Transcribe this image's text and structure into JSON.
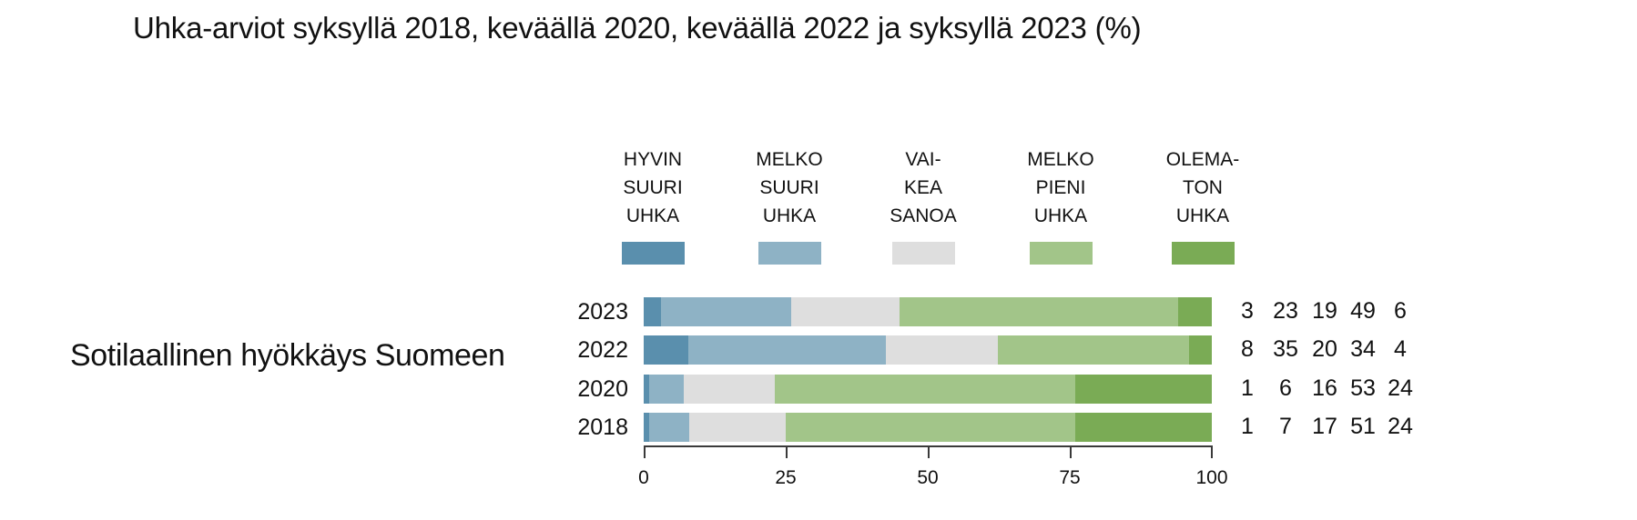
{
  "title": "Uhka-arviot syksyllä 2018, keväällä 2020, keväällä 2022 ja syksyllä 2023 (%)",
  "legend": [
    {
      "lines": [
        "HYVIN",
        "SUURI",
        "UHKA"
      ],
      "color": "#5a8fad"
    },
    {
      "lines": [
        "MELKO",
        "SUURI",
        "UHKA"
      ],
      "color": "#8eb2c5"
    },
    {
      "lines": [
        "VAI-",
        "KEA",
        "SANOA"
      ],
      "color": "#dedede"
    },
    {
      "lines": [
        "MELKO",
        "PIENI",
        "UHKA"
      ],
      "color": "#a2c589"
    },
    {
      "lines": [
        "OLEMA-",
        "TON",
        "UHKA"
      ],
      "color": "#7aab55"
    }
  ],
  "row_label": "Sotilaallinen hyökkäys Suomeen",
  "rows": [
    {
      "year": "2023",
      "values": [
        3,
        23,
        19,
        49,
        6
      ]
    },
    {
      "year": "2022",
      "values": [
        8,
        35,
        20,
        34,
        4
      ]
    },
    {
      "year": "2020",
      "values": [
        1,
        6,
        16,
        53,
        24
      ]
    },
    {
      "year": "2018",
      "values": [
        1,
        7,
        17,
        51,
        24
      ]
    }
  ],
  "axis": {
    "ticks": [
      "0",
      "25",
      "50",
      "75",
      "100"
    ]
  },
  "chart_data": {
    "type": "bar",
    "orientation": "horizontal",
    "stacked": true,
    "title": "Uhka-arviot syksyllä 2018, keväällä 2020, keväällä 2022 ja syksyllä 2023 (%)",
    "group_label": "Sotilaallinen hyökkäys Suomeen",
    "categories": [
      "2023",
      "2022",
      "2020",
      "2018"
    ],
    "series": [
      {
        "name": "HYVIN SUURI UHKA",
        "color": "#5a8fad",
        "values": [
          3,
          8,
          1,
          1
        ]
      },
      {
        "name": "MELKO SUURI UHKA",
        "color": "#8eb2c5",
        "values": [
          23,
          35,
          6,
          7
        ]
      },
      {
        "name": "VAIKEA SANOA",
        "color": "#dedede",
        "values": [
          19,
          20,
          16,
          17
        ]
      },
      {
        "name": "MELKO PIENI UHKA",
        "color": "#a2c589",
        "values": [
          49,
          34,
          53,
          51
        ]
      },
      {
        "name": "OLEMATON UHKA",
        "color": "#7aab55",
        "values": [
          6,
          4,
          24,
          24
        ]
      }
    ],
    "xlabel": "",
    "ylabel": "",
    "xlim": [
      0,
      100
    ],
    "xticks": [
      0,
      25,
      50,
      75,
      100
    ],
    "grid": false,
    "legend_position": "top",
    "data_labels_position": "right"
  }
}
